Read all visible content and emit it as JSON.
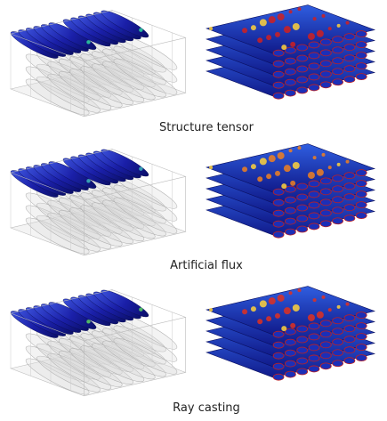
{
  "captions": [
    "Structure tensor",
    "Artificial flux",
    "Ray casting"
  ]
}
